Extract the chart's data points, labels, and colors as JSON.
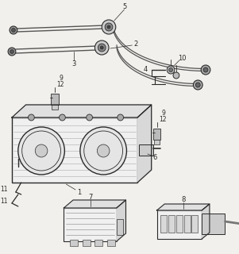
{
  "bg_color": "#f2f0ec",
  "line_color": "#2a2a2a",
  "figsize": [
    3.01,
    3.2
  ],
  "dpi": 100,
  "lw": 0.7,
  "label_fs": 5.5,
  "cable_colors": [
    "#444444",
    "#666666",
    "#888888"
  ],
  "connector_fc": "#aaaaaa",
  "cluster_fc": "#f8f8f8",
  "clip_fc": "#bbbbbb",
  "box_fc": "#e8e8e8"
}
